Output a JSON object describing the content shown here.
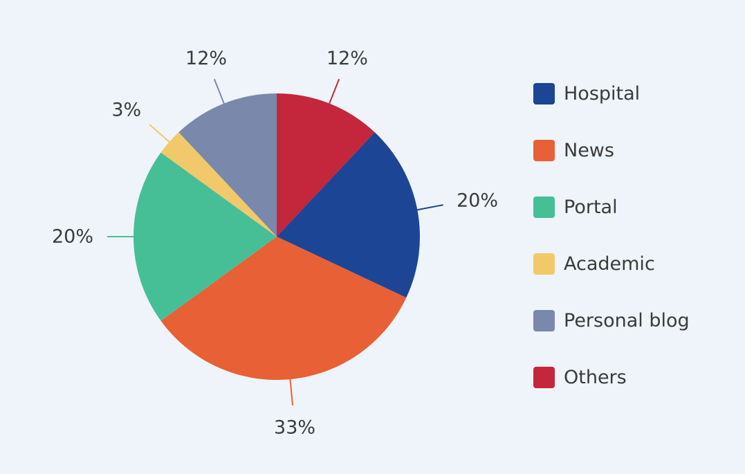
{
  "chart_data": {
    "type": "pie",
    "title": "",
    "start_angle_deg": 0,
    "direction": "clockwise",
    "legend_position": "right",
    "slices": [
      {
        "label": "Others",
        "value": 12,
        "display": "12%",
        "color": "#c4263c"
      },
      {
        "label": "Hospital",
        "value": 20,
        "display": "20%",
        "color": "#1c4595"
      },
      {
        "label": "News",
        "value": 33,
        "display": "33%",
        "color": "#e86035"
      },
      {
        "label": "Portal",
        "value": 20,
        "display": "20%",
        "color": "#47bf96"
      },
      {
        "label": "Academic",
        "value": 3,
        "display": "3%",
        "color": "#f2c96a"
      },
      {
        "label": "Personal blog",
        "value": 12,
        "display": "12%",
        "color": "#7a88ab"
      }
    ],
    "legend": [
      {
        "label": "Hospital",
        "color": "#1c4595"
      },
      {
        "label": "News",
        "color": "#e86035"
      },
      {
        "label": "Portal",
        "color": "#47bf96"
      },
      {
        "label": "Academic",
        "color": "#f2c96a"
      },
      {
        "label": "Personal blog",
        "color": "#7a88ab"
      },
      {
        "label": "Others",
        "color": "#c4263c"
      }
    ]
  }
}
